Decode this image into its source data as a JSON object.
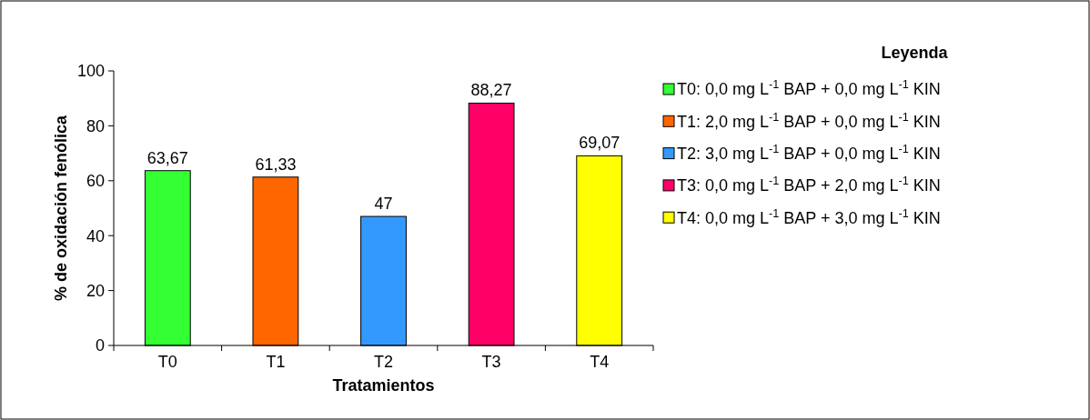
{
  "chart_data": {
    "type": "bar",
    "stacked": true,
    "xlabel": "Tratamientos",
    "ylabel": "% de oxidación fenólica",
    "legend_title": "Leyenda",
    "legend": "right",
    "categories": [
      "T0",
      "T1",
      "T2",
      "T3",
      "T4"
    ],
    "ylim": [
      0,
      100
    ],
    "yticks": [
      0,
      20,
      40,
      60,
      80,
      100
    ],
    "series": [
      {
        "name": "T0: 0,0 mg L$^{-1}$ BAP + 0,0 mg L$^{-1}$ KIN",
        "color": "#33ff33",
        "values": [
          63.67,
          null,
          null,
          null,
          null
        ],
        "value_labels": [
          "63,67",
          null,
          null,
          null,
          null
        ]
      },
      {
        "name": "T1: 2,0 mg L$^{-1}$ BAP + 0,0 mg L$^{-1}$ KIN",
        "color": "#ff6600",
        "values": [
          null,
          61.33,
          null,
          null,
          null
        ],
        "value_labels": [
          null,
          "61,33",
          null,
          null,
          null
        ]
      },
      {
        "name": "T2: 3,0 mg L$^{-1}$ BAP + 0,0 mg L$^{-1}$ KIN",
        "color": "#3399ff",
        "values": [
          null,
          null,
          47,
          null,
          null
        ],
        "value_labels": [
          null,
          null,
          "47",
          null,
          null
        ]
      },
      {
        "name": "T3: 0,0 mg L$^{-1}$ BAP + 2,0 mg L$^{-1}$ KIN",
        "color": "#ff0066",
        "values": [
          null,
          null,
          null,
          88.27,
          null
        ],
        "value_labels": [
          null,
          null,
          null,
          "88,27",
          null
        ]
      },
      {
        "name": "T4: 0,0 mg L$^{-1}$ BAP + 3,0 mg L$^{-1}$ KIN",
        "color": "#ffff00",
        "values": [
          null,
          null,
          null,
          null,
          69.07
        ],
        "value_labels": [
          null,
          null,
          null,
          null,
          "69,07"
        ]
      }
    ]
  }
}
